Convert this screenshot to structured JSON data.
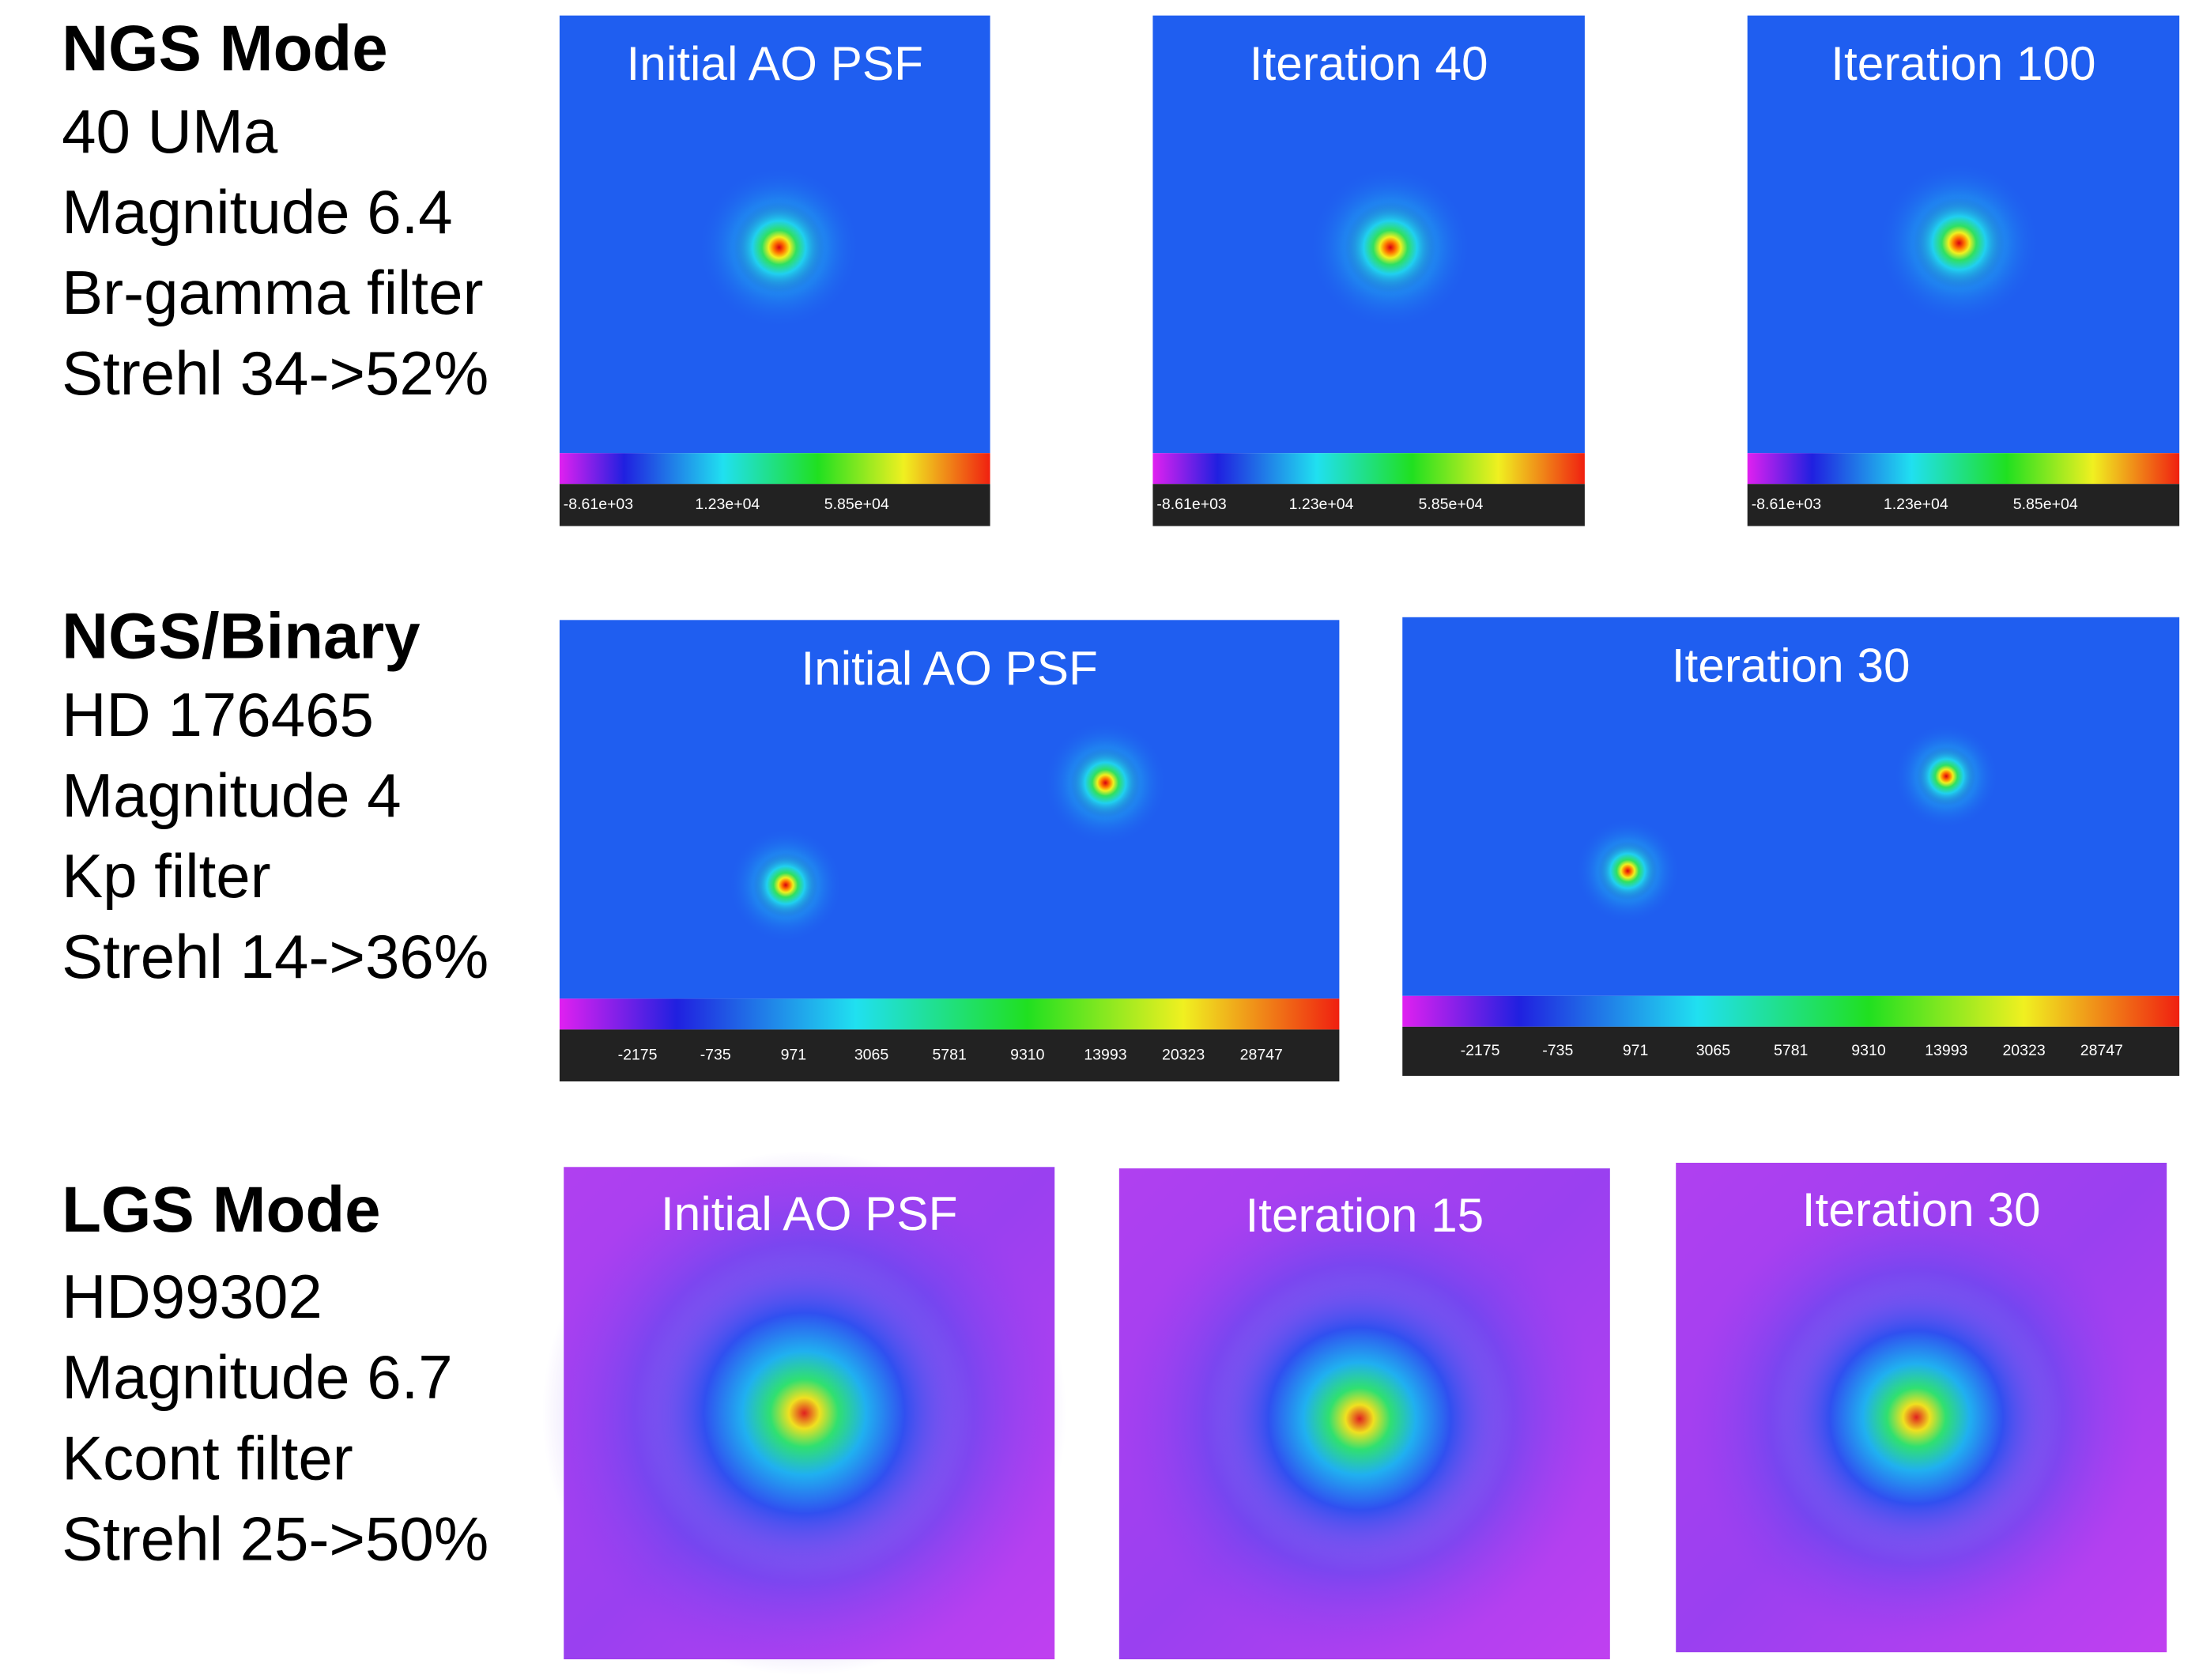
{
  "sections": [
    {
      "heading": "NGS Mode",
      "lines": [
        "40 UMa",
        "Magnitude 6.4",
        "Br-gamma filter",
        "Strehl 34->52%"
      ],
      "panels": [
        {
          "title": "Initial AO PSF",
          "colorbar_ticks": [
            "-8.61e+03",
            "1.23e+04",
            "5.85e+04"
          ]
        },
        {
          "title": "Iteration 40",
          "colorbar_ticks": [
            "-8.61e+03",
            "1.23e+04",
            "5.85e+04"
          ]
        },
        {
          "title": "Iteration 100",
          "colorbar_ticks": [
            "-8.61e+03",
            "1.23e+04",
            "5.85e+04"
          ]
        }
      ]
    },
    {
      "heading": "NGS/Binary",
      "lines": [
        "HD 176465",
        "Magnitude 4",
        "Kp filter",
        "Strehl 14->36%"
      ],
      "panels": [
        {
          "title": "Initial AO PSF",
          "colorbar_ticks": [
            "-2175",
            "-735",
            "971",
            "3065",
            "5781",
            "9310",
            "13993",
            "20323",
            "28747"
          ]
        },
        {
          "title": "Iteration 30",
          "colorbar_ticks": [
            "-2175",
            "-735",
            "971",
            "3065",
            "5781",
            "9310",
            "13993",
            "20323",
            "28747"
          ]
        }
      ]
    },
    {
      "heading": "LGS Mode",
      "lines": [
        "HD99302",
        "Magnitude 6.7",
        "Kcont filter",
        "Strehl 25->50%"
      ],
      "panels": [
        {
          "title": "Initial AO PSF"
        },
        {
          "title": "Iteration 15"
        },
        {
          "title": "Iteration 30"
        }
      ]
    }
  ]
}
